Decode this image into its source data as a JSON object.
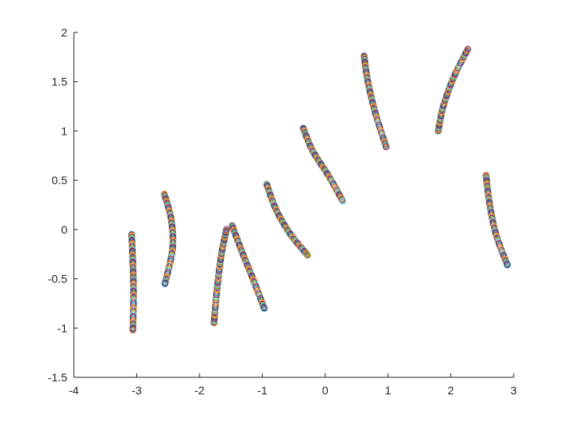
{
  "chart_data": {
    "type": "scatter",
    "title": "",
    "xlabel": "",
    "ylabel": "",
    "xlim": [
      -4,
      3
    ],
    "ylim": [
      -1.5,
      2
    ],
    "xticks": [
      -4,
      -3,
      -2,
      -1,
      0,
      1,
      2,
      3
    ],
    "yticks": [
      -1.5,
      -1,
      -0.5,
      0,
      0.5,
      1,
      1.5,
      2
    ],
    "xtick_labels": [
      "-4",
      "-3",
      "-2",
      "-1",
      "0",
      "1",
      "2",
      "3"
    ],
    "ytick_labels": [
      "-1.5",
      "-1",
      "-0.5",
      "0",
      "0.5",
      "1",
      "1.5",
      "2"
    ],
    "grid": false,
    "box": false,
    "marker": "open-circle",
    "marker_colors": [
      "#0072BD",
      "#D95319",
      "#EDB120",
      "#7E2F8E",
      "#77AC30",
      "#4DBEEE",
      "#A2142F"
    ],
    "segments": [
      {
        "points": [
          [
            -3.08,
            -0.05
          ],
          [
            -3.06,
            -0.35
          ],
          [
            -3.05,
            -0.65
          ],
          [
            -3.06,
            -1.02
          ]
        ]
      },
      {
        "points": [
          [
            -2.56,
            0.36
          ],
          [
            -2.45,
            0.1
          ],
          [
            -2.43,
            -0.2
          ],
          [
            -2.55,
            -0.55
          ]
        ]
      },
      {
        "points": [
          [
            -1.77,
            -0.95
          ],
          [
            -1.72,
            -0.6
          ],
          [
            -1.65,
            -0.25
          ],
          [
            -1.57,
            0.0
          ]
        ]
      },
      {
        "points": [
          [
            -1.48,
            0.04
          ],
          [
            -1.34,
            -0.2
          ],
          [
            -1.15,
            -0.5
          ],
          [
            -0.97,
            -0.8
          ]
        ]
      },
      {
        "points": [
          [
            -0.93,
            0.46
          ],
          [
            -0.78,
            0.2
          ],
          [
            -0.55,
            -0.05
          ],
          [
            -0.28,
            -0.26
          ]
        ]
      },
      {
        "points": [
          [
            -0.35,
            1.03
          ],
          [
            -0.2,
            0.8
          ],
          [
            0.05,
            0.55
          ],
          [
            0.28,
            0.29
          ]
        ]
      },
      {
        "points": [
          [
            0.62,
            1.76
          ],
          [
            0.68,
            1.5
          ],
          [
            0.8,
            1.18
          ],
          [
            0.97,
            0.84
          ]
        ]
      },
      {
        "points": [
          [
            1.8,
            1.0
          ],
          [
            1.88,
            1.25
          ],
          [
            2.05,
            1.55
          ],
          [
            2.27,
            1.83
          ]
        ]
      },
      {
        "points": [
          [
            2.56,
            0.55
          ],
          [
            2.62,
            0.25
          ],
          [
            2.72,
            -0.05
          ],
          [
            2.9,
            -0.36
          ]
        ]
      }
    ]
  }
}
